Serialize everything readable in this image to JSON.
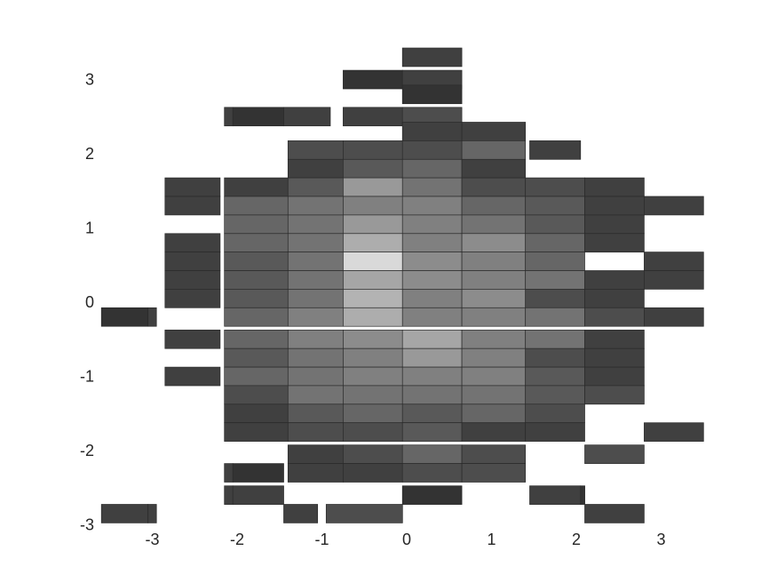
{
  "chart_data": {
    "type": "heatmap",
    "title": "",
    "xlabel": "",
    "ylabel": "",
    "xlim": [
      -3.3,
      3.5
    ],
    "ylim": [
      -3,
      3.5
    ],
    "grid": false,
    "x_ticks": [
      -3,
      -2,
      -1,
      0,
      1,
      2,
      3
    ],
    "y_ticks": [
      -3,
      -2,
      -1,
      0,
      1,
      2,
      3
    ],
    "colormap": "gray",
    "tile_height": 0.25,
    "rows": [
      {
        "y": 3.3,
        "tiles": [
          {
            "x0": -0.05,
            "x1": 0.65,
            "v": 0.25
          }
        ]
      },
      {
        "y": 3.0,
        "tiles": [
          {
            "x0": -0.75,
            "x1": -0.05,
            "v": 0.2
          },
          {
            "x0": -0.05,
            "x1": 0.65,
            "v": 0.25
          }
        ]
      },
      {
        "y": 2.8,
        "tiles": [
          {
            "x0": -0.05,
            "x1": 0.65,
            "v": 0.2
          }
        ]
      },
      {
        "y": 2.5,
        "tiles": [
          {
            "x0": -2.15,
            "x1": -2.05,
            "v": 0.25
          },
          {
            "x0": -2.05,
            "x1": -1.45,
            "v": 0.2
          },
          {
            "x0": -1.45,
            "x1": -0.9,
            "v": 0.25
          },
          {
            "x0": -0.75,
            "x1": -0.05,
            "v": 0.25
          },
          {
            "x0": -0.05,
            "x1": 0.65,
            "v": 0.3
          }
        ]
      },
      {
        "y": 2.3,
        "tiles": [
          {
            "x0": -0.05,
            "x1": 0.65,
            "v": 0.25
          },
          {
            "x0": 0.65,
            "x1": 1.4,
            "v": 0.25
          }
        ]
      },
      {
        "y": 2.05,
        "tiles": [
          {
            "x0": -1.4,
            "x1": -0.75,
            "v": 0.3
          },
          {
            "x0": -0.75,
            "x1": -0.05,
            "v": 0.3
          },
          {
            "x0": -0.05,
            "x1": 0.65,
            "v": 0.3
          },
          {
            "x0": 0.65,
            "x1": 1.4,
            "v": 0.4
          },
          {
            "x0": 1.45,
            "x1": 2.05,
            "v": 0.25
          }
        ]
      },
      {
        "y": 1.8,
        "tiles": [
          {
            "x0": -1.4,
            "x1": -0.75,
            "v": 0.25
          },
          {
            "x0": -0.75,
            "x1": -0.05,
            "v": 0.35
          },
          {
            "x0": -0.05,
            "x1": 0.65,
            "v": 0.4
          },
          {
            "x0": 0.65,
            "x1": 1.4,
            "v": 0.25
          }
        ]
      },
      {
        "y": 1.55,
        "tiles": [
          {
            "x0": -2.85,
            "x1": -2.2,
            "v": 0.25
          },
          {
            "x0": -2.15,
            "x1": -1.4,
            "v": 0.25
          },
          {
            "x0": -1.4,
            "x1": -0.75,
            "v": 0.35
          },
          {
            "x0": -0.75,
            "x1": -0.05,
            "v": 0.6
          },
          {
            "x0": -0.05,
            "x1": 0.65,
            "v": 0.45
          },
          {
            "x0": 0.65,
            "x1": 1.4,
            "v": 0.3
          },
          {
            "x0": 1.4,
            "x1": 2.1,
            "v": 0.3
          },
          {
            "x0": 2.1,
            "x1": 2.8,
            "v": 0.25
          }
        ]
      },
      {
        "y": 1.3,
        "tiles": [
          {
            "x0": -2.85,
            "x1": -2.2,
            "v": 0.25
          },
          {
            "x0": -2.15,
            "x1": -1.4,
            "v": 0.4
          },
          {
            "x0": -1.4,
            "x1": -0.75,
            "v": 0.45
          },
          {
            "x0": -0.75,
            "x1": -0.05,
            "v": 0.5
          },
          {
            "x0": -0.05,
            "x1": 0.65,
            "v": 0.5
          },
          {
            "x0": 0.65,
            "x1": 1.4,
            "v": 0.4
          },
          {
            "x0": 1.4,
            "x1": 2.1,
            "v": 0.35
          },
          {
            "x0": 2.1,
            "x1": 2.8,
            "v": 0.25
          },
          {
            "x0": 2.8,
            "x1": 3.5,
            "v": 0.25
          }
        ]
      },
      {
        "y": 1.05,
        "tiles": [
          {
            "x0": -2.15,
            "x1": -1.4,
            "v": 0.4
          },
          {
            "x0": -1.4,
            "x1": -0.75,
            "v": 0.45
          },
          {
            "x0": -0.75,
            "x1": -0.05,
            "v": 0.6
          },
          {
            "x0": -0.05,
            "x1": 0.65,
            "v": 0.5
          },
          {
            "x0": 0.65,
            "x1": 1.4,
            "v": 0.45
          },
          {
            "x0": 1.4,
            "x1": 2.1,
            "v": 0.35
          },
          {
            "x0": 2.1,
            "x1": 2.8,
            "v": 0.25
          }
        ]
      },
      {
        "y": 0.8,
        "tiles": [
          {
            "x0": -2.85,
            "x1": -2.2,
            "v": 0.25
          },
          {
            "x0": -2.15,
            "x1": -1.4,
            "v": 0.4
          },
          {
            "x0": -1.4,
            "x1": -0.75,
            "v": 0.45
          },
          {
            "x0": -0.75,
            "x1": -0.05,
            "v": 0.68
          },
          {
            "x0": -0.05,
            "x1": 0.65,
            "v": 0.5
          },
          {
            "x0": 0.65,
            "x1": 1.4,
            "v": 0.55
          },
          {
            "x0": 1.4,
            "x1": 2.1,
            "v": 0.4
          },
          {
            "x0": 2.1,
            "x1": 2.8,
            "v": 0.25
          }
        ]
      },
      {
        "y": 0.55,
        "tiles": [
          {
            "x0": -2.85,
            "x1": -2.2,
            "v": 0.25
          },
          {
            "x0": -2.15,
            "x1": -1.4,
            "v": 0.35
          },
          {
            "x0": -1.4,
            "x1": -0.75,
            "v": 0.45
          },
          {
            "x0": -0.75,
            "x1": -0.05,
            "v": 0.85
          },
          {
            "x0": -0.05,
            "x1": 0.65,
            "v": 0.55
          },
          {
            "x0": 0.65,
            "x1": 1.4,
            "v": 0.5
          },
          {
            "x0": 1.4,
            "x1": 2.1,
            "v": 0.4
          },
          {
            "x0": 2.8,
            "x1": 3.5,
            "v": 0.25
          }
        ]
      },
      {
        "y": 0.3,
        "tiles": [
          {
            "x0": -2.85,
            "x1": -2.2,
            "v": 0.25
          },
          {
            "x0": -2.15,
            "x1": -1.4,
            "v": 0.35
          },
          {
            "x0": -1.4,
            "x1": -0.75,
            "v": 0.45
          },
          {
            "x0": -0.75,
            "x1": -0.05,
            "v": 0.65
          },
          {
            "x0": -0.05,
            "x1": 0.65,
            "v": 0.55
          },
          {
            "x0": 0.65,
            "x1": 1.4,
            "v": 0.5
          },
          {
            "x0": 1.4,
            "x1": 2.1,
            "v": 0.45
          },
          {
            "x0": 2.1,
            "x1": 2.8,
            "v": 0.25
          },
          {
            "x0": 2.8,
            "x1": 3.5,
            "v": 0.25
          }
        ]
      },
      {
        "y": 0.05,
        "tiles": [
          {
            "x0": -2.85,
            "x1": -2.2,
            "v": 0.25
          },
          {
            "x0": -2.15,
            "x1": -1.4,
            "v": 0.35
          },
          {
            "x0": -1.4,
            "x1": -0.75,
            "v": 0.45
          },
          {
            "x0": -0.75,
            "x1": -0.05,
            "v": 0.7
          },
          {
            "x0": -0.05,
            "x1": 0.65,
            "v": 0.5
          },
          {
            "x0": 0.65,
            "x1": 1.4,
            "v": 0.55
          },
          {
            "x0": 1.4,
            "x1": 2.1,
            "v": 0.3
          },
          {
            "x0": 2.1,
            "x1": 2.8,
            "v": 0.25
          }
        ]
      },
      {
        "y": -0.2,
        "tiles": [
          {
            "x0": -3.6,
            "x1": -3.05,
            "v": 0.2
          },
          {
            "x0": -3.05,
            "x1": -2.95,
            "v": 0.25
          },
          {
            "x0": -2.15,
            "x1": -1.4,
            "v": 0.4
          },
          {
            "x0": -1.4,
            "x1": -0.75,
            "v": 0.5
          },
          {
            "x0": -0.75,
            "x1": -0.05,
            "v": 0.68
          },
          {
            "x0": -0.05,
            "x1": 0.65,
            "v": 0.5
          },
          {
            "x0": 0.65,
            "x1": 1.4,
            "v": 0.5
          },
          {
            "x0": 1.4,
            "x1": 2.1,
            "v": 0.45
          },
          {
            "x0": 2.1,
            "x1": 2.8,
            "v": 0.3
          },
          {
            "x0": 2.8,
            "x1": 3.5,
            "v": 0.25
          }
        ]
      },
      {
        "y": -0.5,
        "tiles": [
          {
            "x0": -2.85,
            "x1": -2.2,
            "v": 0.25
          },
          {
            "x0": -2.15,
            "x1": -1.4,
            "v": 0.4
          },
          {
            "x0": -1.4,
            "x1": -0.75,
            "v": 0.5
          },
          {
            "x0": -0.75,
            "x1": -0.05,
            "v": 0.55
          },
          {
            "x0": -0.05,
            "x1": 0.65,
            "v": 0.65
          },
          {
            "x0": 0.65,
            "x1": 1.4,
            "v": 0.5
          },
          {
            "x0": 1.4,
            "x1": 2.1,
            "v": 0.45
          },
          {
            "x0": 2.1,
            "x1": 2.8,
            "v": 0.25
          }
        ]
      },
      {
        "y": -0.75,
        "tiles": [
          {
            "x0": -2.15,
            "x1": -1.4,
            "v": 0.35
          },
          {
            "x0": -1.4,
            "x1": -0.75,
            "v": 0.45
          },
          {
            "x0": -0.75,
            "x1": -0.05,
            "v": 0.5
          },
          {
            "x0": -0.05,
            "x1": 0.65,
            "v": 0.6
          },
          {
            "x0": 0.65,
            "x1": 1.4,
            "v": 0.5
          },
          {
            "x0": 1.4,
            "x1": 2.1,
            "v": 0.3
          },
          {
            "x0": 2.1,
            "x1": 2.8,
            "v": 0.25
          }
        ]
      },
      {
        "y": -1.0,
        "tiles": [
          {
            "x0": -2.85,
            "x1": -2.2,
            "v": 0.25
          },
          {
            "x0": -2.15,
            "x1": -1.4,
            "v": 0.4
          },
          {
            "x0": -1.4,
            "x1": -0.75,
            "v": 0.45
          },
          {
            "x0": -0.75,
            "x1": -0.05,
            "v": 0.5
          },
          {
            "x0": -0.05,
            "x1": 0.65,
            "v": 0.5
          },
          {
            "x0": 0.65,
            "x1": 1.4,
            "v": 0.5
          },
          {
            "x0": 1.4,
            "x1": 2.1,
            "v": 0.35
          },
          {
            "x0": 2.1,
            "x1": 2.8,
            "v": 0.25
          }
        ]
      },
      {
        "y": -1.25,
        "tiles": [
          {
            "x0": -2.15,
            "x1": -1.4,
            "v": 0.3
          },
          {
            "x0": -1.4,
            "x1": -0.75,
            "v": 0.45
          },
          {
            "x0": -0.75,
            "x1": -0.05,
            "v": 0.45
          },
          {
            "x0": -0.05,
            "x1": 0.65,
            "v": 0.45
          },
          {
            "x0": 0.65,
            "x1": 1.4,
            "v": 0.45
          },
          {
            "x0": 1.4,
            "x1": 2.1,
            "v": 0.35
          },
          {
            "x0": 2.1,
            "x1": 2.8,
            "v": 0.3
          }
        ]
      },
      {
        "y": -1.5,
        "tiles": [
          {
            "x0": -2.15,
            "x1": -1.4,
            "v": 0.25
          },
          {
            "x0": -1.4,
            "x1": -0.75,
            "v": 0.35
          },
          {
            "x0": -0.75,
            "x1": -0.05,
            "v": 0.4
          },
          {
            "x0": -0.05,
            "x1": 0.65,
            "v": 0.35
          },
          {
            "x0": 0.65,
            "x1": 1.4,
            "v": 0.4
          },
          {
            "x0": 1.4,
            "x1": 2.1,
            "v": 0.3
          }
        ]
      },
      {
        "y": -1.75,
        "tiles": [
          {
            "x0": -2.15,
            "x1": -1.4,
            "v": 0.25
          },
          {
            "x0": -1.4,
            "x1": -0.75,
            "v": 0.3
          },
          {
            "x0": -0.75,
            "x1": -0.05,
            "v": 0.3
          },
          {
            "x0": -0.05,
            "x1": 0.65,
            "v": 0.35
          },
          {
            "x0": 0.65,
            "x1": 1.4,
            "v": 0.25
          },
          {
            "x0": 1.4,
            "x1": 2.1,
            "v": 0.25
          },
          {
            "x0": 2.8,
            "x1": 3.5,
            "v": 0.25
          }
        ]
      },
      {
        "y": -2.05,
        "tiles": [
          {
            "x0": -1.4,
            "x1": -0.75,
            "v": 0.25
          },
          {
            "x0": -0.75,
            "x1": -0.05,
            "v": 0.3
          },
          {
            "x0": -0.05,
            "x1": 0.65,
            "v": 0.4
          },
          {
            "x0": 0.65,
            "x1": 1.4,
            "v": 0.3
          },
          {
            "x0": 2.1,
            "x1": 2.8,
            "v": 0.3
          }
        ]
      },
      {
        "y": -2.3,
        "tiles": [
          {
            "x0": -2.15,
            "x1": -2.05,
            "v": 0.25
          },
          {
            "x0": -2.05,
            "x1": -1.45,
            "v": 0.2
          },
          {
            "x0": -1.4,
            "x1": -0.75,
            "v": 0.25
          },
          {
            "x0": -0.75,
            "x1": -0.05,
            "v": 0.25
          },
          {
            "x0": -0.05,
            "x1": 0.65,
            "v": 0.3
          },
          {
            "x0": 0.65,
            "x1": 1.4,
            "v": 0.3
          }
        ]
      },
      {
        "y": -2.6,
        "tiles": [
          {
            "x0": -2.15,
            "x1": -2.05,
            "v": 0.25
          },
          {
            "x0": -2.05,
            "x1": -1.45,
            "v": 0.25
          },
          {
            "x0": -0.05,
            "x1": 0.65,
            "v": 0.2
          },
          {
            "x0": 1.45,
            "x1": 2.05,
            "v": 0.25
          },
          {
            "x0": 2.05,
            "x1": 2.1,
            "v": 0.2
          }
        ]
      },
      {
        "y": -2.85,
        "tiles": [
          {
            "x0": -3.6,
            "x1": -3.05,
            "v": 0.25
          },
          {
            "x0": -3.05,
            "x1": -2.95,
            "v": 0.25
          },
          {
            "x0": -1.45,
            "x1": -1.05,
            "v": 0.25
          },
          {
            "x0": -0.95,
            "x1": -0.05,
            "v": 0.3
          },
          {
            "x0": 2.1,
            "x1": 2.8,
            "v": 0.25
          }
        ]
      }
    ]
  }
}
